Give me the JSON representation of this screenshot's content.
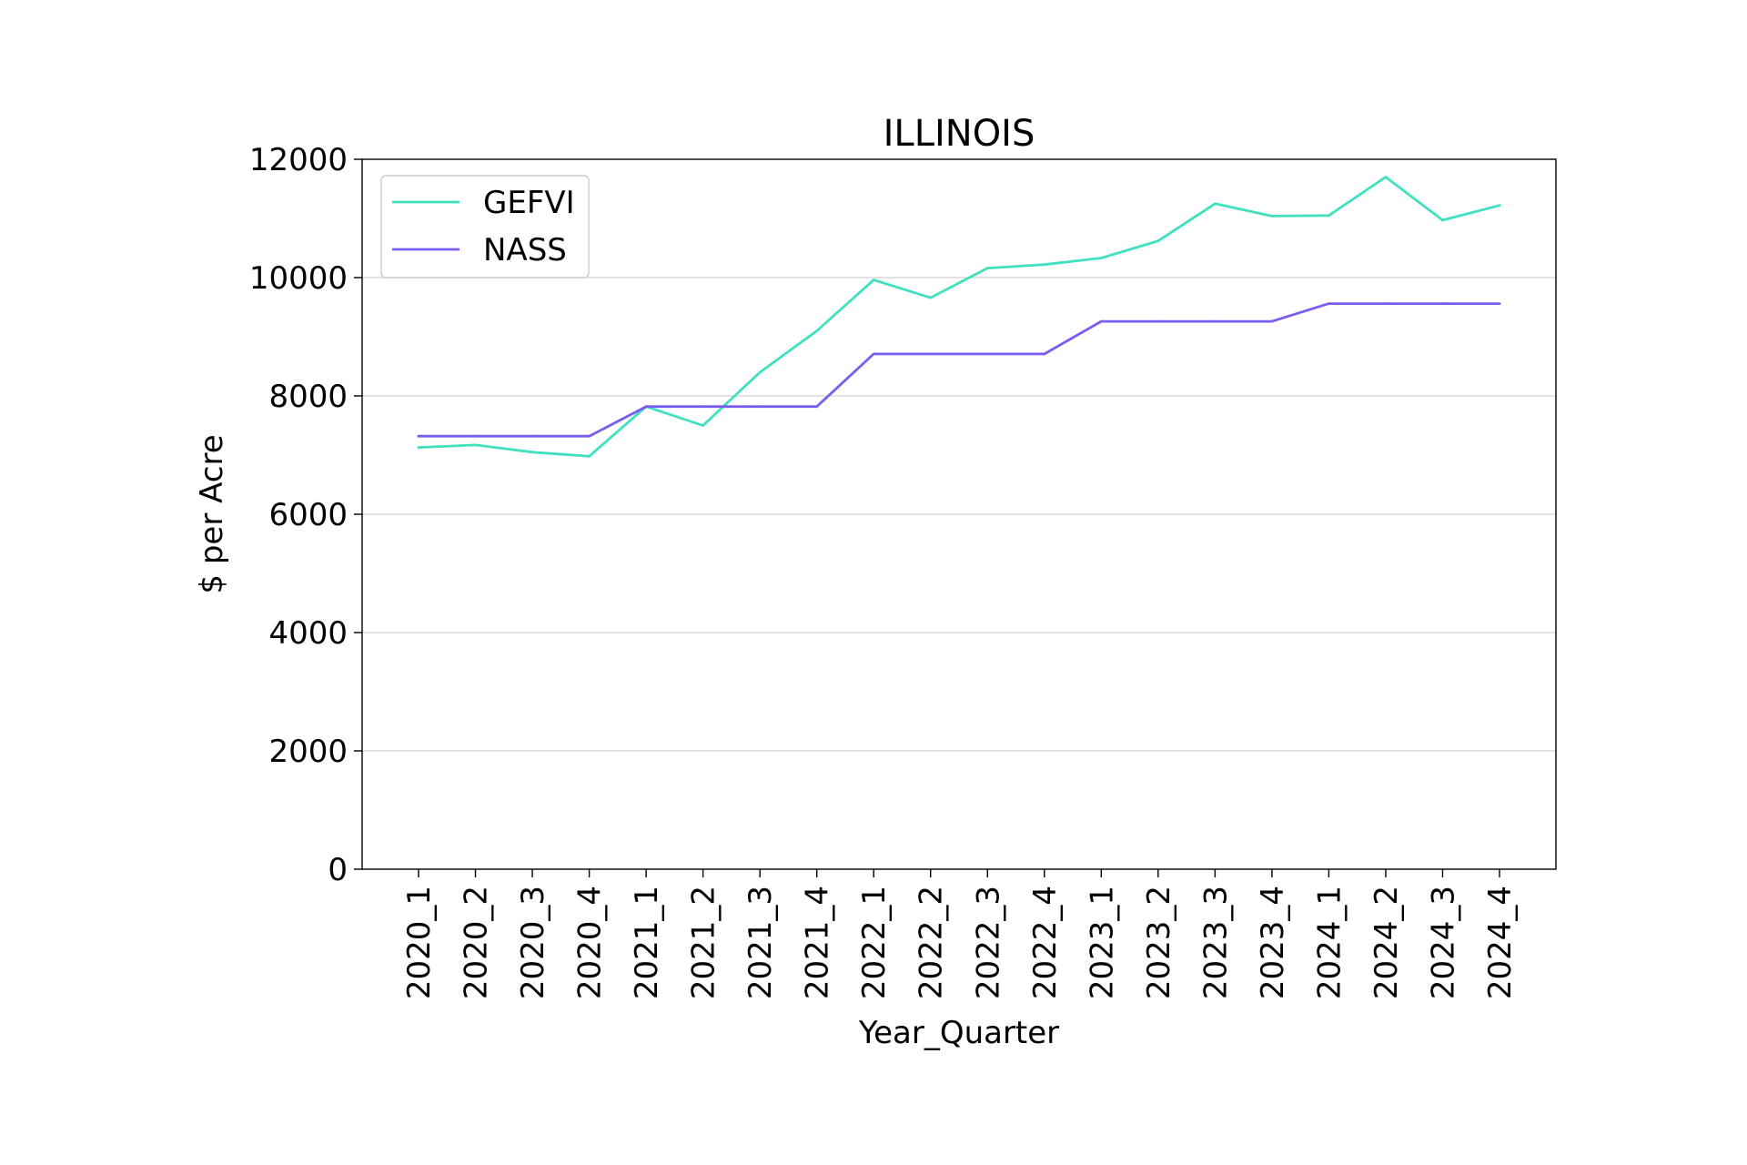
{
  "chart_data": {
    "type": "line",
    "title": "ILLINOIS",
    "xlabel": "Year_Quarter",
    "ylabel": "$ per Acre",
    "categories": [
      "2020_1",
      "2020_2",
      "2020_3",
      "2020_4",
      "2021_1",
      "2021_2",
      "2021_3",
      "2021_4",
      "2022_1",
      "2022_2",
      "2022_3",
      "2022_4",
      "2023_1",
      "2023_2",
      "2023_3",
      "2023_4",
      "2024_1",
      "2024_2",
      "2024_3",
      "2024_4"
    ],
    "ylim": [
      0,
      12000
    ],
    "yticks": [
      0,
      2000,
      4000,
      6000,
      8000,
      10000,
      12000
    ],
    "grid": "horizontal",
    "legend_position": "top-left",
    "series": [
      {
        "name": "GEFVI",
        "color": "#40e0c0",
        "values": [
          7130,
          7170,
          7050,
          6980,
          7820,
          7500,
          8400,
          9100,
          9960,
          9660,
          10160,
          10220,
          10330,
          10620,
          11250,
          11040,
          11050,
          11700,
          10970,
          11220
        ]
      },
      {
        "name": "NASS",
        "color": "#7b5cf0",
        "values": [
          7320,
          7320,
          7320,
          7320,
          7820,
          7820,
          7820,
          7820,
          8710,
          8710,
          8710,
          8710,
          9260,
          9260,
          9260,
          9260,
          9560,
          9560,
          9560,
          9560
        ]
      }
    ]
  }
}
